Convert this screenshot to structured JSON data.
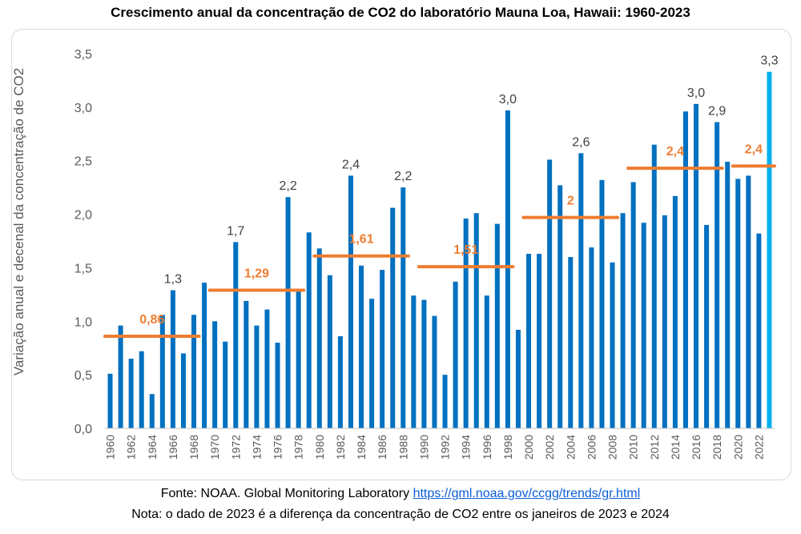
{
  "title": "Crescimento anual da concentração de CO2 do laboratório Mauna Loa, Hawaii: 1960-2023",
  "footer": {
    "source_prefix": "Fonte: NOAA. Global Monitoring Laboratory",
    "source_link": "https://gml.noaa.gov/ccgg/trends/gr.html",
    "note": "Nota: o dado de 2023 é a diferença da concentração de CO2 entre os janeiros de 2023 e 2024"
  },
  "colors": {
    "bar": "#0070c0",
    "bar_highlight": "#00b0f0",
    "decade_line": "#ed7d31",
    "label": "#404040",
    "axis_text": "#595959"
  },
  "chart_data": {
    "type": "bar",
    "ylabel": "Variação anual e decenal da concentração de CO2",
    "ylim": [
      0,
      3.5
    ],
    "yticks": [
      "0,0",
      "0,5",
      "1,0",
      "1,5",
      "2,0",
      "2,5",
      "3,0",
      "3,5"
    ],
    "grid": false,
    "x_tick_labels": [
      "1960",
      "1962",
      "1964",
      "1966",
      "1968",
      "1970",
      "1972",
      "1974",
      "1976",
      "1978",
      "1980",
      "1982",
      "1984",
      "1986",
      "1988",
      "1990",
      "1992",
      "1994",
      "1996",
      "1998",
      "2000",
      "2002",
      "2004",
      "2006",
      "2008",
      "2010",
      "2012",
      "2014",
      "2016",
      "2018",
      "2020",
      "2022"
    ],
    "categories": [
      1960,
      1961,
      1962,
      1963,
      1964,
      1965,
      1966,
      1967,
      1968,
      1969,
      1970,
      1971,
      1972,
      1973,
      1974,
      1975,
      1976,
      1977,
      1978,
      1979,
      1980,
      1981,
      1982,
      1983,
      1984,
      1985,
      1986,
      1987,
      1988,
      1989,
      1990,
      1991,
      1992,
      1993,
      1994,
      1995,
      1996,
      1997,
      1998,
      1999,
      2000,
      2001,
      2002,
      2003,
      2004,
      2005,
      2006,
      2007,
      2008,
      2009,
      2010,
      2011,
      2012,
      2013,
      2014,
      2015,
      2016,
      2017,
      2018,
      2019,
      2020,
      2021,
      2022,
      2023
    ],
    "values": [
      0.51,
      0.96,
      0.65,
      0.72,
      0.32,
      1.06,
      1.29,
      0.7,
      1.06,
      1.36,
      1.0,
      0.81,
      1.74,
      1.19,
      0.96,
      1.11,
      0.8,
      2.16,
      1.3,
      1.83,
      1.68,
      1.43,
      0.86,
      2.36,
      1.52,
      1.21,
      1.48,
      2.06,
      2.25,
      1.24,
      1.2,
      1.05,
      0.5,
      1.37,
      1.96,
      2.01,
      1.24,
      1.91,
      2.97,
      0.92,
      1.63,
      1.63,
      2.51,
      2.27,
      1.6,
      2.57,
      1.69,
      2.32,
      1.55,
      2.01,
      2.3,
      1.92,
      2.65,
      1.99,
      2.17,
      2.96,
      3.03,
      1.9,
      2.86,
      2.49,
      2.33,
      2.36,
      1.82,
      3.33
    ],
    "highlight_last": true,
    "bar_labels": [
      {
        "year": 1966,
        "text": "1,3"
      },
      {
        "year": 1972,
        "text": "1,7"
      },
      {
        "year": 1977,
        "text": "2,2"
      },
      {
        "year": 1983,
        "text": "2,4"
      },
      {
        "year": 1988,
        "text": "2,2"
      },
      {
        "year": 1998,
        "text": "3,0"
      },
      {
        "year": 2005,
        "text": "2,6"
      },
      {
        "year": 2016,
        "text": "3,0"
      },
      {
        "year": 2018,
        "text": "2,9"
      },
      {
        "year": 2023,
        "text": "3,3"
      }
    ],
    "decade_averages": [
      {
        "start": 1960,
        "end": 1968,
        "value": 0.86,
        "label": "0,86"
      },
      {
        "start": 1970,
        "end": 1978,
        "value": 1.29,
        "label": "1,29"
      },
      {
        "start": 1980,
        "end": 1988,
        "value": 1.61,
        "label": "1,61"
      },
      {
        "start": 1990,
        "end": 1998,
        "value": 1.51,
        "label": "1,51"
      },
      {
        "start": 2000,
        "end": 2008,
        "value": 1.97,
        "label": "2"
      },
      {
        "start": 2010,
        "end": 2018,
        "value": 2.43,
        "label": "2,4"
      },
      {
        "start": 2020,
        "end": 2023,
        "value": 2.45,
        "label": "2,4"
      }
    ]
  }
}
